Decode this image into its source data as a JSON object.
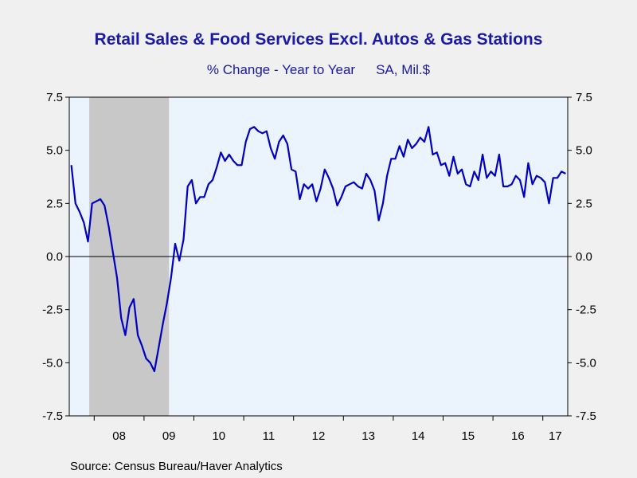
{
  "title": "Retail Sales & Food Services Excl. Autos & Gas Stations",
  "subtitle_left": "% Change - Year to Year",
  "subtitle_right": "SA, Mil.$",
  "source": "Source:  Census Bureau/Haver Analytics",
  "colors": {
    "background": "#f0f0f0",
    "plot_area": "#ebf3fd",
    "recession": "#c8c8c8",
    "line": "#0000c0",
    "text": "#1a1aa6"
  },
  "chart_data": {
    "type": "line",
    "title": "Retail Sales & Food Services Excl. Autos & Gas Stations",
    "subtitle": "% Change - Year to Year    SA, Mil.$",
    "xlabel": "",
    "ylabel": "",
    "ylim": [
      -7.5,
      7.5
    ],
    "xlim": [
      "2007-07",
      "2017-06"
    ],
    "yticks": [
      7.5,
      5.0,
      2.5,
      0.0,
      -2.5,
      -5.0,
      -7.5
    ],
    "ytick_labels": [
      "7.5",
      "5.0",
      "2.5",
      "0.0",
      "-2.5",
      "-5.0",
      "-7.5"
    ],
    "xtick_labels": [
      "08",
      "09",
      "10",
      "11",
      "12",
      "13",
      "14",
      "15",
      "16",
      "17"
    ],
    "recession_shading": {
      "start": "2007-12",
      "end": "2009-06"
    },
    "zero_line": true,
    "grid": false,
    "series": [
      {
        "start": "2007-07",
        "frequency": "monthly",
        "values": [
          4.3,
          2.5,
          2.1,
          1.6,
          0.7,
          2.5,
          2.6,
          2.7,
          2.4,
          1.4,
          0.2,
          -1.0,
          -2.9,
          -3.7,
          -2.4,
          -2.0,
          -3.7,
          -4.2,
          -4.8,
          -5.0,
          -5.4,
          -4.3,
          -3.2,
          -2.2,
          -1.0,
          0.6,
          -0.2,
          0.8,
          3.3,
          3.6,
          2.5,
          2.8,
          2.8,
          3.4,
          3.6,
          4.2,
          4.9,
          4.5,
          4.8,
          4.5,
          4.3,
          4.3,
          5.4,
          6.0,
          6.1,
          5.9,
          5.8,
          5.9,
          5.1,
          4.6,
          5.4,
          5.7,
          5.3,
          4.1,
          4.0,
          2.7,
          3.4,
          3.2,
          3.4,
          2.6,
          3.2,
          4.1,
          3.7,
          3.2,
          2.4,
          2.8,
          3.3,
          3.4,
          3.5,
          3.3,
          3.2,
          3.9,
          3.6,
          3.1,
          1.7,
          2.5,
          3.8,
          4.6,
          4.6,
          5.2,
          4.7,
          5.5,
          5.1,
          5.3,
          5.6,
          5.4,
          6.1,
          4.8,
          4.9,
          4.3,
          4.4,
          3.8,
          4.7,
          3.9,
          4.1,
          3.4,
          3.3,
          4.0,
          3.6,
          4.8,
          3.7,
          4.0,
          3.8,
          4.8,
          3.3,
          3.3,
          3.4,
          3.8,
          3.6,
          2.8,
          4.4,
          3.4,
          3.8,
          3.7,
          3.5,
          2.5,
          3.7,
          3.7,
          4.0,
          3.9
        ]
      }
    ]
  }
}
